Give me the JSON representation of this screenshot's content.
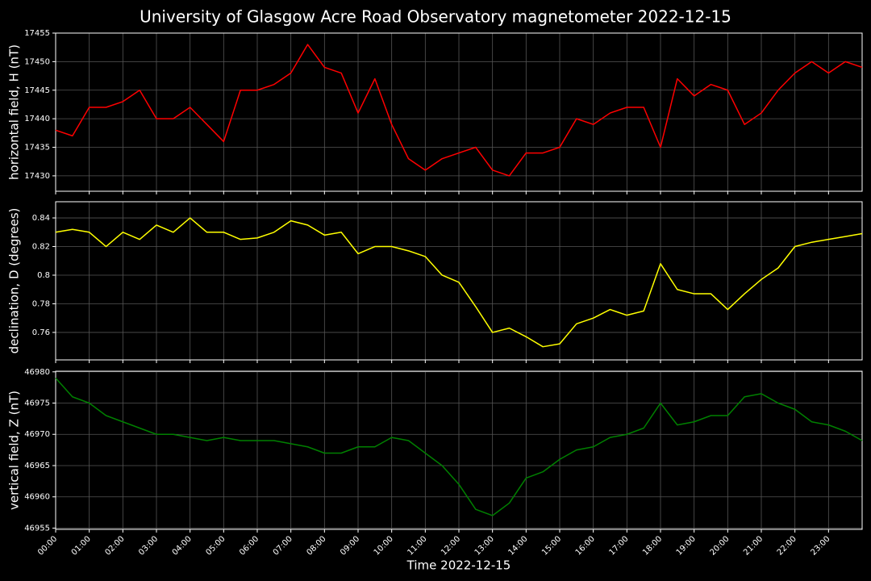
{
  "title": "University of Glasgow Acre Road Observatory magnetometer 2022-12-15",
  "chart_data": [
    {
      "type": "line",
      "ylabel": "horizontal field, H (nT)",
      "grid": true,
      "xlim": [
        0,
        24
      ],
      "ylim": [
        17427.3,
        17455.0
      ],
      "xticks": [
        0,
        1,
        2,
        3,
        4,
        5,
        6,
        7,
        8,
        9,
        10,
        11,
        12,
        13,
        14,
        15,
        16,
        17,
        18,
        19,
        20,
        21,
        22,
        23
      ],
      "yticks": [
        17430,
        17435,
        17440,
        17445,
        17450,
        17455
      ],
      "x": [
        0,
        0.5,
        1,
        1.5,
        2,
        2.5,
        3,
        3.5,
        4,
        4.5,
        5,
        5.5,
        6,
        6.5,
        7,
        7.5,
        8,
        8.5,
        9,
        9.5,
        10,
        10.5,
        11,
        11.5,
        12,
        12.5,
        13,
        13.5,
        14,
        14.5,
        15,
        15.5,
        16,
        16.5,
        17,
        17.5,
        18,
        18.5,
        19,
        19.5,
        20,
        20.5,
        21,
        21.5,
        22,
        22.5,
        23,
        23.5,
        24
      ],
      "series": [
        {
          "color": "#ff0000",
          "values": [
            17438,
            17437,
            17442,
            17442,
            17443,
            17445,
            17440,
            17440,
            17442,
            17439,
            17436,
            17445,
            17445,
            17446,
            17448,
            17453,
            17449,
            17448,
            17441,
            17447,
            17439,
            17433,
            17431,
            17433,
            17434,
            17435,
            17431,
            17430,
            17434,
            17434,
            17435,
            17440,
            17439,
            17441,
            17442,
            17442,
            17435,
            17447,
            17444,
            17446,
            17445,
            17439,
            17441,
            17445,
            17448,
            17450,
            17448,
            17450,
            17449
          ]
        }
      ]
    },
    {
      "type": "line",
      "ylabel": "declination, D (degrees)",
      "grid": true,
      "xlim": [
        0,
        24
      ],
      "ylim": [
        0.7408,
        0.8513
      ],
      "xticks": [
        0,
        1,
        2,
        3,
        4,
        5,
        6,
        7,
        8,
        9,
        10,
        11,
        12,
        13,
        14,
        15,
        16,
        17,
        18,
        19,
        20,
        21,
        22,
        23
      ],
      "yticks": [
        0.76,
        0.78,
        0.8,
        0.82,
        0.84
      ],
      "x": [
        0,
        0.5,
        1,
        1.5,
        2,
        2.5,
        3,
        3.5,
        4,
        4.5,
        5,
        5.5,
        6,
        6.5,
        7,
        7.5,
        8,
        8.5,
        9,
        9.5,
        10,
        10.5,
        11,
        11.5,
        12,
        12.5,
        13,
        13.5,
        14,
        14.5,
        15,
        15.5,
        16,
        16.5,
        17,
        17.5,
        18,
        18.5,
        19,
        19.5,
        20,
        20.5,
        21,
        21.5,
        22,
        22.5,
        23,
        23.5,
        24
      ],
      "series": [
        {
          "color": "#ffff00",
          "values": [
            0.83,
            0.832,
            0.83,
            0.82,
            0.83,
            0.825,
            0.835,
            0.83,
            0.84,
            0.83,
            0.83,
            0.825,
            0.826,
            0.83,
            0.838,
            0.835,
            0.828,
            0.83,
            0.815,
            0.82,
            0.82,
            0.817,
            0.813,
            0.8,
            0.795,
            0.778,
            0.76,
            0.763,
            0.757,
            0.75,
            0.752,
            0.766,
            0.77,
            0.776,
            0.772,
            0.775,
            0.808,
            0.79,
            0.787,
            0.787,
            0.776,
            0.787,
            0.797,
            0.805,
            0.82,
            0.823,
            0.825,
            0.827,
            0.829
          ]
        }
      ]
    },
    {
      "type": "line",
      "ylabel": "vertical field, Z (nT)",
      "xlabel": "Time 2022-12-15",
      "grid": true,
      "xlim": [
        0,
        24
      ],
      "ylim": [
        46954.8,
        46980.1
      ],
      "xticks": [
        {
          "value": 0,
          "label": "00:00"
        },
        {
          "value": 1,
          "label": "01:00"
        },
        {
          "value": 2,
          "label": "02:00"
        },
        {
          "value": 3,
          "label": "03:00"
        },
        {
          "value": 4,
          "label": "04:00"
        },
        {
          "value": 5,
          "label": "05:00"
        },
        {
          "value": 6,
          "label": "06:00"
        },
        {
          "value": 7,
          "label": "07:00"
        },
        {
          "value": 8,
          "label": "08:00"
        },
        {
          "value": 9,
          "label": "09:00"
        },
        {
          "value": 10,
          "label": "10:00"
        },
        {
          "value": 11,
          "label": "11:00"
        },
        {
          "value": 12,
          "label": "12:00"
        },
        {
          "value": 13,
          "label": "13:00"
        },
        {
          "value": 14,
          "label": "14:00"
        },
        {
          "value": 15,
          "label": "15:00"
        },
        {
          "value": 16,
          "label": "16:00"
        },
        {
          "value": 17,
          "label": "17:00"
        },
        {
          "value": 18,
          "label": "18:00"
        },
        {
          "value": 19,
          "label": "19:00"
        },
        {
          "value": 20,
          "label": "20:00"
        },
        {
          "value": 21,
          "label": "21:00"
        },
        {
          "value": 22,
          "label": "22:00"
        },
        {
          "value": 23,
          "label": "23:00"
        }
      ],
      "yticks": [
        46955,
        46960,
        46965,
        46970,
        46975,
        46980
      ],
      "x": [
        0,
        0.5,
        1,
        1.5,
        2,
        2.5,
        3,
        3.5,
        4,
        4.5,
        5,
        5.5,
        6,
        6.5,
        7,
        7.5,
        8,
        8.5,
        9,
        9.5,
        10,
        10.5,
        11,
        11.5,
        12,
        12.5,
        13,
        13.5,
        14,
        14.5,
        15,
        15.5,
        16,
        16.5,
        17,
        17.5,
        18,
        18.5,
        19,
        19.5,
        20,
        20.5,
        21,
        21.5,
        22,
        22.5,
        23,
        23.5,
        24
      ],
      "series": [
        {
          "color": "#008000",
          "values": [
            46979,
            46976,
            46975,
            46973,
            46972,
            46971,
            46970,
            46970,
            46969.5,
            46969,
            46969.5,
            46969,
            46969,
            46969,
            46968.5,
            46968,
            46967,
            46967,
            46968,
            46968,
            46969.5,
            46969,
            46967,
            46965,
            46962,
            46958,
            46957,
            46959,
            46963,
            46964,
            46966,
            46967.5,
            46968,
            46969.5,
            46970,
            46971,
            46975,
            46971.5,
            46972,
            46973,
            46973,
            46976,
            46976.5,
            46975,
            46974,
            46972,
            46971.5,
            46970.5,
            46969
          ]
        }
      ]
    }
  ]
}
